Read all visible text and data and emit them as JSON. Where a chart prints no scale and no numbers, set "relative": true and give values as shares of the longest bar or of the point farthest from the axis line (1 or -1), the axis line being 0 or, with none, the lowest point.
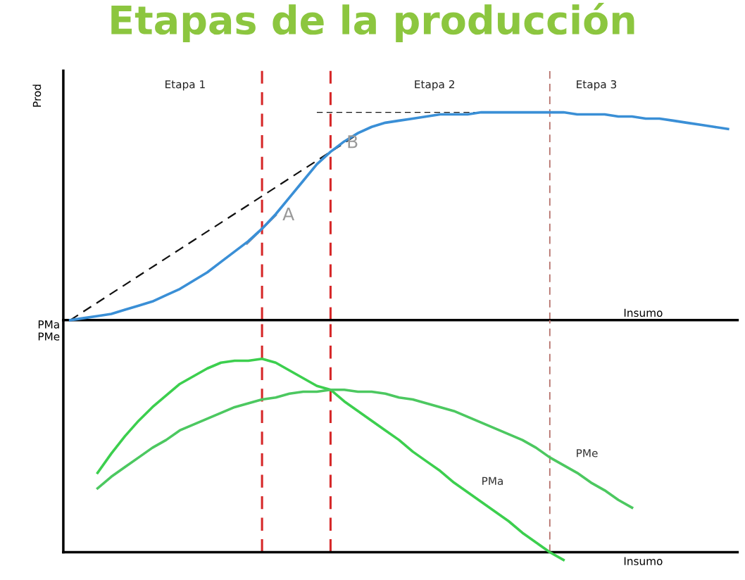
{
  "chart_data": [
    {
      "type": "line",
      "title": "Etapas de la producción",
      "ylabel": "Prod",
      "xlabel": "Insumo",
      "relative": true,
      "marker": "none",
      "categories": [
        null,
        null,
        null,
        null,
        null,
        null,
        null,
        null,
        null,
        null,
        null,
        null,
        null,
        null,
        null,
        null,
        null,
        null,
        null,
        null,
        null,
        null,
        null,
        null,
        null,
        null,
        null,
        null,
        null,
        null,
        null,
        null,
        null,
        null,
        null,
        null,
        null,
        null,
        null,
        null,
        null,
        null,
        null,
        null,
        null,
        null,
        null,
        null,
        null
      ],
      "series": [
        {
          "color": "#3a8fd6",
          "line_style": "solid",
          "values": [
            0,
            0.01,
            0.02,
            0.03,
            0.05,
            0.07,
            0.09,
            0.12,
            0.15,
            0.19,
            0.23,
            0.28,
            0.33,
            0.38,
            0.44,
            0.51,
            0.59,
            0.67,
            0.75,
            0.81,
            0.86,
            0.9,
            0.93,
            0.95,
            0.96,
            0.97,
            0.98,
            0.99,
            0.99,
            0.99,
            1.0,
            1.0,
            1.0,
            1.0,
            1.0,
            1.0,
            1.0,
            0.99,
            0.99,
            0.99,
            0.98,
            0.98,
            0.97,
            0.97,
            0.96,
            0.95,
            0.94,
            0.93,
            0.92
          ]
        }
      ],
      "annotations": [
        "Etapa 1",
        "Etapa 2",
        "Etapa 3",
        "A",
        "B"
      ]
    },
    {
      "type": "line",
      "ylabel": "PMa\nPMe",
      "xlabel": "Insumo",
      "relative": true,
      "marker": "none",
      "categories": [
        null,
        null,
        null,
        null,
        null,
        null,
        null,
        null,
        null,
        null,
        null,
        null,
        null,
        null,
        null,
        null,
        null,
        null,
        null,
        null,
        null,
        null,
        null,
        null,
        null,
        null,
        null,
        null,
        null,
        null,
        null,
        null,
        null,
        null,
        null,
        null,
        null,
        null,
        null,
        null,
        null,
        null,
        null,
        null,
        null,
        null,
        null,
        null,
        null
      ],
      "series": [
        {
          "name": "PMa",
          "color": "#3ccf4e",
          "line_style": "solid",
          "values": [
            null,
            null,
            0.41,
            0.51,
            0.6,
            0.68,
            0.75,
            0.81,
            0.87,
            0.91,
            0.95,
            0.98,
            0.99,
            0.99,
            1.0,
            0.98,
            0.94,
            0.9,
            0.86,
            0.84,
            0.78,
            0.73,
            0.68,
            0.63,
            0.58,
            0.52,
            0.47,
            0.42,
            0.36,
            0.31,
            0.26,
            0.21,
            0.16,
            0.1,
            0.05,
            0,
            -0.04,
            null,
            null,
            null,
            null,
            null,
            null,
            null,
            null,
            null,
            null,
            null,
            null
          ]
        },
        {
          "name": "PMe",
          "color": "#4cc860",
          "line_style": "solid",
          "values": [
            null,
            null,
            0.33,
            0.39,
            0.44,
            0.49,
            0.54,
            0.58,
            0.63,
            0.66,
            0.69,
            0.72,
            0.75,
            0.77,
            0.79,
            0.8,
            0.82,
            0.83,
            0.83,
            0.84,
            0.84,
            0.83,
            0.83,
            0.82,
            0.8,
            0.79,
            0.77,
            0.75,
            0.73,
            0.7,
            0.67,
            0.64,
            0.61,
            0.58,
            0.54,
            0.49,
            0.45,
            0.41,
            0.36,
            0.32,
            0.27,
            0.23,
            null,
            null,
            null,
            null,
            null,
            null,
            null
          ]
        }
      ]
    }
  ]
}
